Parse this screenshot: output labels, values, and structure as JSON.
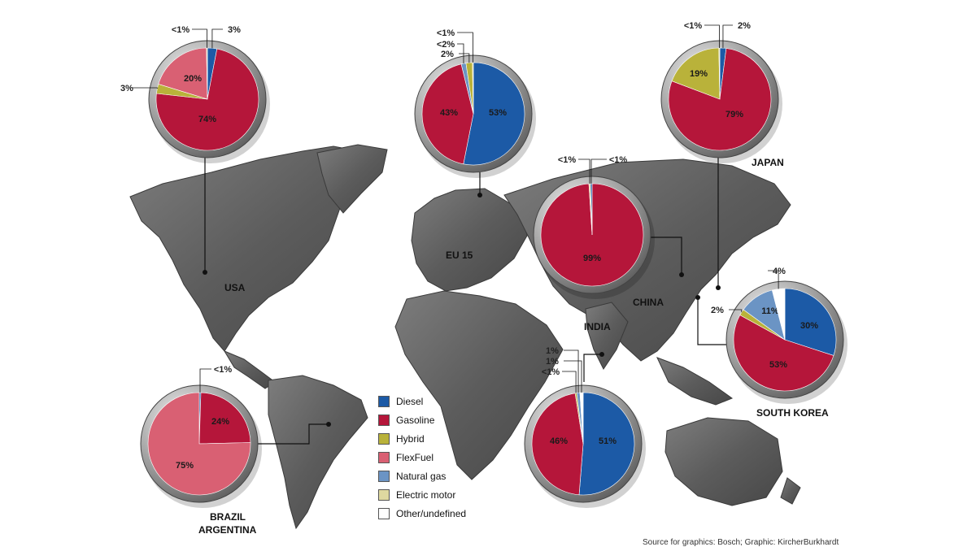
{
  "source": "Source for graphics: Bosch; Graphic: KircherBurkhardt",
  "legend": [
    {
      "label": "Diesel",
      "color": "#1c5aa6"
    },
    {
      "label": "Gasoline",
      "color": "#b5163a"
    },
    {
      "label": "Hybrid",
      "color": "#b9b23a"
    },
    {
      "label": "FlexFuel",
      "color": "#d96073"
    },
    {
      "label": "Natural gas",
      "color": "#6b94c4"
    },
    {
      "label": "Electric motor",
      "color": "#ded8a0"
    },
    {
      "label": "Other/undefined",
      "color": "#ffffff"
    }
  ],
  "chart_data": [
    {
      "type": "pie",
      "region": "USA",
      "slices": [
        {
          "category": "Diesel",
          "value": 3,
          "label": "3%"
        },
        {
          "category": "Gasoline",
          "value": 74,
          "label": "74%"
        },
        {
          "category": "Hybrid",
          "value": 3,
          "label": "3%"
        },
        {
          "category": "FlexFuel",
          "value": 20,
          "label": "20%"
        },
        {
          "category": "Electric motor",
          "value": 0.3,
          "label": "<1%"
        }
      ]
    },
    {
      "type": "pie",
      "region": "EU 15",
      "slices": [
        {
          "category": "Diesel",
          "value": 53,
          "label": "53%"
        },
        {
          "category": "Gasoline",
          "value": 43,
          "label": "43%"
        },
        {
          "category": "Natural gas",
          "value": 1.5,
          "label": "<2%"
        },
        {
          "category": "Hybrid",
          "value": 2,
          "label": "2%"
        },
        {
          "category": "Electric motor",
          "value": 0.3,
          "label": "<1%"
        }
      ]
    },
    {
      "type": "pie",
      "region": "JAPAN",
      "slices": [
        {
          "category": "Diesel",
          "value": 2,
          "label": "2%"
        },
        {
          "category": "Gasoline",
          "value": 79,
          "label": "79%"
        },
        {
          "category": "Hybrid",
          "value": 19,
          "label": "19%"
        },
        {
          "category": "Electric motor",
          "value": 0.3,
          "label": "<1%"
        }
      ]
    },
    {
      "type": "pie",
      "region": "CHINA",
      "slices": [
        {
          "category": "Gasoline",
          "value": 99,
          "label": "99%"
        },
        {
          "category": "Electric motor",
          "value": 0.5,
          "label": "<1%"
        },
        {
          "category": "Diesel",
          "value": 0.5,
          "label": "<1%"
        }
      ]
    },
    {
      "type": "pie",
      "region": "SOUTH KOREA",
      "slices": [
        {
          "category": "Diesel",
          "value": 30,
          "label": "30%"
        },
        {
          "category": "Gasoline",
          "value": 53,
          "label": "53%"
        },
        {
          "category": "Hybrid",
          "value": 2,
          "label": "2%"
        },
        {
          "category": "Natural gas",
          "value": 11,
          "label": "11%"
        },
        {
          "category": "Other/undefined",
          "value": 4,
          "label": "4%"
        }
      ]
    },
    {
      "type": "pie",
      "region": "INDIA",
      "slices": [
        {
          "category": "Diesel",
          "value": 51,
          "label": "51%"
        },
        {
          "category": "Gasoline",
          "value": 46,
          "label": "46%"
        },
        {
          "category": "Hybrid",
          "value": 0.5,
          "label": "<1%"
        },
        {
          "category": "Natural gas",
          "value": 1,
          "label": "1%"
        },
        {
          "category": "Other/undefined",
          "value": 1,
          "label": "1%"
        }
      ]
    },
    {
      "type": "pie",
      "region": "BRAZIL\nARGENTINA",
      "slices": [
        {
          "category": "Diesel",
          "value": 0.5,
          "label": "<1%"
        },
        {
          "category": "Gasoline",
          "value": 24,
          "label": "24%"
        },
        {
          "category": "FlexFuel",
          "value": 75,
          "label": "75%"
        }
      ]
    }
  ]
}
